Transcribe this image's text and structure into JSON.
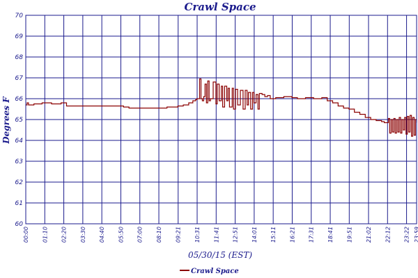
{
  "chart_data": {
    "type": "line",
    "title": "Crawl Space",
    "xlabel": "05/30/15 (EST)",
    "ylabel": "Degrees F",
    "ylim": [
      60,
      70
    ],
    "yticks": [
      "60",
      "61",
      "62",
      "63",
      "64",
      "65",
      "66",
      "67",
      "68",
      "69",
      "70"
    ],
    "xlim": [
      0,
      1439
    ],
    "xticks": [
      {
        "label": "00:00",
        "x": 0
      },
      {
        "label": "01:10",
        "x": 70
      },
      {
        "label": "02:20",
        "x": 140
      },
      {
        "label": "03:30",
        "x": 210
      },
      {
        "label": "04:40",
        "x": 280
      },
      {
        "label": "05:50",
        "x": 350
      },
      {
        "label": "07:00",
        "x": 420
      },
      {
        "label": "08:10",
        "x": 490
      },
      {
        "label": "09:21",
        "x": 561
      },
      {
        "label": "10:31",
        "x": 631
      },
      {
        "label": "11:41",
        "x": 701
      },
      {
        "label": "12:51",
        "x": 771
      },
      {
        "label": "14:01",
        "x": 841
      },
      {
        "label": "15:11",
        "x": 911
      },
      {
        "label": "16:21",
        "x": 981
      },
      {
        "label": "17:31",
        "x": 1051
      },
      {
        "label": "18:41",
        "x": 1121
      },
      {
        "label": "19:51",
        "x": 1191
      },
      {
        "label": "21:02",
        "x": 1262
      },
      {
        "label": "22:12",
        "x": 1332
      },
      {
        "label": "23:22",
        "x": 1402
      },
      {
        "label": "23:59",
        "x": 1439
      }
    ],
    "grid": true,
    "legend": "bottom-left",
    "series": [
      {
        "name": "Crawl Space",
        "color": "#8b0000",
        "x": [
          0,
          5,
          10,
          30,
          60,
          95,
          130,
          150,
          300,
          330,
          360,
          380,
          420,
          440,
          460,
          480,
          500,
          520,
          540,
          560,
          580,
          600,
          615,
          625,
          630,
          635,
          640,
          645,
          650,
          655,
          660,
          665,
          670,
          675,
          680,
          690,
          700,
          705,
          712,
          720,
          725,
          732,
          740,
          745,
          750,
          760,
          765,
          772,
          780,
          790,
          800,
          808,
          815,
          820,
          828,
          835,
          840,
          848,
          855,
          860,
          870,
          880,
          890,
          900,
          920,
          950,
          980,
          1000,
          1030,
          1060,
          1090,
          1110,
          1130,
          1150,
          1170,
          1190,
          1210,
          1230,
          1250,
          1270,
          1290,
          1310,
          1320,
          1330,
          1335,
          1340,
          1345,
          1350,
          1355,
          1360,
          1365,
          1370,
          1375,
          1380,
          1385,
          1390,
          1395,
          1400,
          1405,
          1410,
          1415,
          1420,
          1425,
          1430,
          1435,
          1439
        ],
        "y": [
          65.7,
          65.8,
          65.7,
          65.75,
          65.8,
          65.75,
          65.8,
          65.65,
          65.65,
          65.65,
          65.6,
          65.55,
          65.55,
          65.55,
          65.55,
          65.55,
          65.55,
          65.6,
          65.6,
          65.65,
          65.7,
          65.8,
          65.9,
          65.95,
          66.0,
          66.0,
          66.95,
          66.0,
          65.9,
          66.1,
          66.7,
          65.8,
          66.85,
          65.9,
          66.0,
          66.8,
          65.75,
          66.7,
          65.9,
          66.6,
          65.6,
          66.6,
          65.9,
          66.5,
          65.6,
          66.5,
          65.5,
          66.45,
          65.7,
          66.4,
          65.5,
          66.4,
          65.7,
          66.3,
          65.5,
          66.3,
          65.8,
          66.2,
          65.5,
          66.25,
          66.2,
          66.1,
          66.15,
          66.0,
          66.05,
          66.1,
          66.05,
          66.0,
          66.05,
          66.0,
          66.05,
          65.9,
          65.8,
          65.65,
          65.55,
          65.5,
          65.35,
          65.25,
          65.1,
          65.0,
          64.95,
          64.9,
          64.85,
          64.85,
          65.05,
          64.35,
          65.0,
          64.4,
          65.05,
          64.35,
          65.0,
          64.4,
          65.1,
          64.35,
          65.0,
          64.5,
          65.1,
          64.3,
          65.15,
          64.4,
          65.2,
          64.2,
          65.1,
          64.25,
          65.0,
          64.85
        ]
      }
    ]
  }
}
